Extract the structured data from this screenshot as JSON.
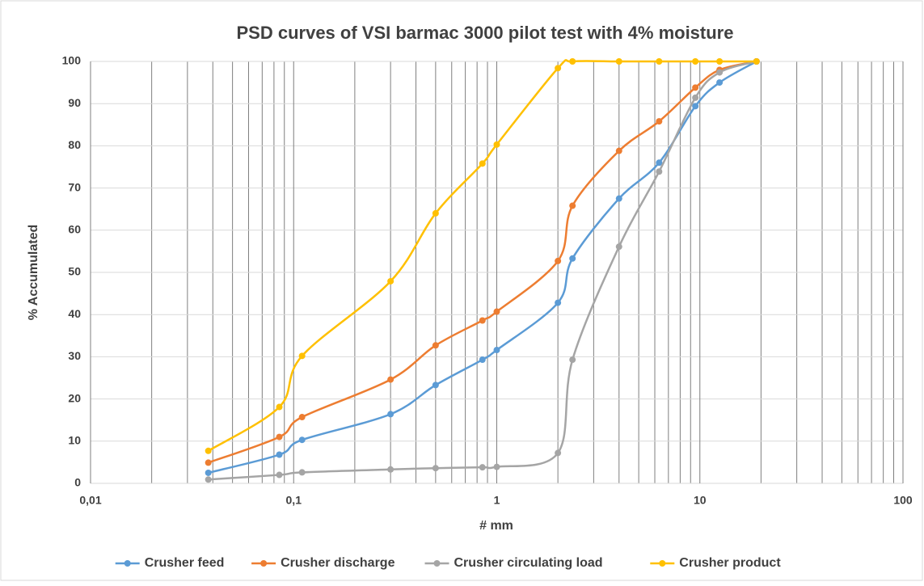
{
  "chart_data": {
    "type": "line",
    "title": "PSD curves of VSI barmac 3000 pilot test with 4% moisture",
    "x_label": "# mm",
    "y_label": "% Accumulated",
    "x": [
      0.038,
      0.085,
      0.11,
      0.3,
      0.5,
      0.85,
      1,
      2,
      2.36,
      4,
      6.3,
      9.5,
      12.5,
      19
    ],
    "series": [
      {
        "name": "Crusher feed",
        "color": "#5b9bd5",
        "values": [
          2.5,
          6.8,
          10.3,
          16.4,
          23.3,
          29.3,
          31.6,
          42.8,
          53.3,
          67.5,
          76,
          89.4,
          95,
          100
        ]
      },
      {
        "name": "Crusher discharge",
        "color": "#ed7d31",
        "values": [
          4.9,
          11,
          15.7,
          24.6,
          32.7,
          38.6,
          40.7,
          52.7,
          65.8,
          78.8,
          85.8,
          93.8,
          98,
          100
        ]
      },
      {
        "name": "Crusher circulating load",
        "color": "#a5a5a5",
        "values": [
          0.9,
          2,
          2.6,
          3.3,
          3.6,
          3.8,
          3.9,
          7.2,
          29.3,
          56.1,
          73.9,
          91.4,
          97.4,
          100
        ]
      },
      {
        "name": "Crusher product",
        "color": "#ffc000",
        "values": [
          7.7,
          18.1,
          30.2,
          47.9,
          64,
          75.8,
          80.3,
          98.4,
          100,
          100,
          100,
          100,
          100,
          100
        ]
      }
    ],
    "xscale": "log",
    "xlim": [
      0.01,
      100
    ],
    "xticks": [
      {
        "value": 0.01,
        "label": "0,01"
      },
      {
        "value": 0.1,
        "label": "0,1"
      },
      1,
      10,
      100
    ],
    "xminorticks": [
      0.02,
      0.03,
      0.04,
      0.05,
      0.06,
      0.07,
      0.08,
      0.09,
      0.2,
      0.3,
      0.4,
      0.5,
      0.6,
      0.7,
      0.8,
      0.9,
      2,
      3,
      4,
      5,
      6,
      7,
      8,
      9,
      20,
      30,
      40,
      50,
      60,
      70,
      80,
      90
    ],
    "ylim": [
      0,
      100
    ],
    "yticks": [
      0,
      10,
      20,
      30,
      40,
      50,
      60,
      70,
      80,
      90,
      100
    ],
    "grid": true,
    "smooth": true,
    "legend": "bottom"
  }
}
